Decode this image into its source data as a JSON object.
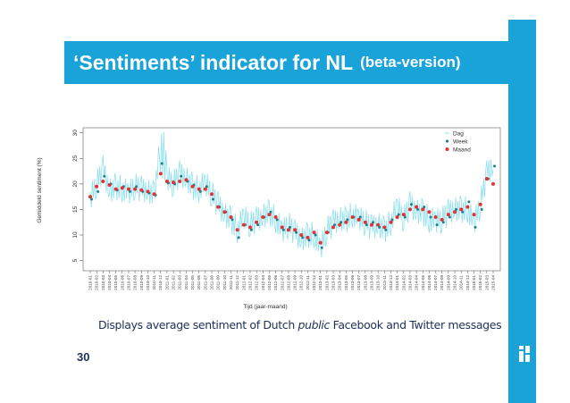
{
  "slide": {
    "title": "‘Sentiments’ indicator for NL",
    "title_suffix": "(beta-version)",
    "caption_before": "Displays average sentiment of Dutch ",
    "caption_em": "public",
    "caption_after": " Facebook and Twitter messages",
    "page_number": "30"
  },
  "colors": {
    "accent": "#1aa3d9",
    "dag": "#8fe0ee",
    "week": "#1f7f90",
    "maand": "#e23232",
    "text_dark": "#1e2f55"
  },
  "chart_data": {
    "type": "line",
    "title": "",
    "xlabel": "Tijd (jaar-maand)",
    "ylabel": "Gemiddeld sentiment (%)",
    "ylim": [
      3,
      31
    ],
    "yticks": [
      5,
      10,
      15,
      20,
      25,
      30
    ],
    "grid": false,
    "legend_position": "top-right",
    "legend": [
      "Dag",
      "Week",
      "Maand"
    ],
    "categories": [
      "2010-01",
      "2010-02",
      "2010-03",
      "2010-04",
      "2010-05",
      "2010-06",
      "2010-07",
      "2010-08",
      "2010-09",
      "2010-10",
      "2010-11",
      "2010-12",
      "2011-01",
      "2011-02",
      "2011-03",
      "2011-04",
      "2011-05",
      "2011-06",
      "2011-07",
      "2011-08",
      "2011-09",
      "2011-10",
      "2011-11",
      "2011-12",
      "2012-01",
      "2012-02",
      "2012-03",
      "2012-04",
      "2012-05",
      "2012-06",
      "2012-07",
      "2012-08",
      "2012-09",
      "2012-10",
      "2012-11",
      "2012-12",
      "2013-01",
      "2013-02",
      "2013-03",
      "2013-04",
      "2013-05",
      "2013-06",
      "2013-07",
      "2013-08",
      "2013-09",
      "2013-10",
      "2013-11",
      "2013-12",
      "2014-01",
      "2014-02",
      "2014-03",
      "2014-04",
      "2014-05",
      "2014-06",
      "2014-07",
      "2014-08",
      "2014-09",
      "2014-10",
      "2014-11",
      "2014-12",
      "2015-01",
      "2015-02",
      "2015-03",
      "2015-04"
    ],
    "series": [
      {
        "name": "Maand",
        "style": "points",
        "values": [
          17.5,
          19.5,
          20.5,
          19.8,
          19.0,
          19.2,
          19.0,
          19.0,
          18.8,
          18.5,
          18.0,
          22.0,
          20.5,
          20.3,
          20.5,
          20.8,
          19.5,
          19.0,
          19.0,
          18.0,
          15.5,
          14.5,
          13.5,
          11.0,
          12.0,
          11.5,
          12.5,
          13.5,
          14.0,
          13.5,
          11.5,
          11.0,
          11.0,
          10.0,
          9.5,
          10.5,
          8.5,
          10.5,
          11.5,
          12.0,
          12.5,
          13.5,
          13.0,
          12.5,
          12.0,
          12.0,
          11.5,
          12.5,
          13.5,
          14.0,
          15.0,
          15.5,
          15.0,
          14.5,
          13.5,
          13.0,
          14.0,
          14.5,
          15.0,
          15.5,
          14.0,
          16.0,
          21.0,
          20.0
        ]
      },
      {
        "name": "Week",
        "style": "points",
        "values": [
          17.0,
          18.5,
          21.5,
          20.0,
          18.8,
          19.5,
          18.5,
          19.5,
          18.5,
          18.2,
          17.8,
          24.0,
          20.2,
          20.0,
          21.5,
          20.5,
          19.8,
          18.5,
          19.5,
          17.0,
          15.5,
          14.5,
          13.0,
          9.5,
          12.0,
          11.0,
          12.0,
          13.5,
          14.5,
          13.0,
          11.0,
          11.5,
          10.5,
          9.5,
          9.0,
          10.0,
          7.5,
          10.5,
          12.0,
          12.5,
          13.0,
          13.5,
          13.5,
          12.0,
          12.5,
          11.5,
          11.0,
          13.0,
          14.0,
          13.5,
          16.0,
          15.0,
          15.5,
          13.5,
          12.0,
          12.5,
          13.5,
          15.0,
          14.5,
          16.5,
          11.5,
          15.0,
          21.0,
          23.5
        ]
      },
      {
        "name": "Dag",
        "style": "line",
        "values": [
          17.0,
          20.0,
          23.0,
          19.0,
          19.5,
          19.0,
          18.0,
          19.5,
          19.0,
          19.0,
          18.0,
          28.0,
          21.0,
          20.0,
          22.0,
          21.5,
          19.5,
          19.0,
          20.0,
          18.0,
          16.0,
          14.5,
          13.0,
          11.0,
          13.5,
          12.0,
          13.0,
          14.0,
          14.5,
          13.0,
          10.5,
          12.0,
          10.5,
          9.5,
          10.0,
          10.0,
          7.0,
          11.0,
          12.5,
          13.5,
          13.0,
          14.0,
          13.0,
          12.5,
          11.5,
          12.5,
          11.0,
          12.5,
          15.5,
          13.0,
          16.0,
          15.0,
          14.5,
          13.0,
          12.5,
          13.0,
          14.5,
          15.5,
          15.0,
          15.0,
          12.0,
          16.0,
          22.0,
          24.0
        ]
      }
    ]
  }
}
